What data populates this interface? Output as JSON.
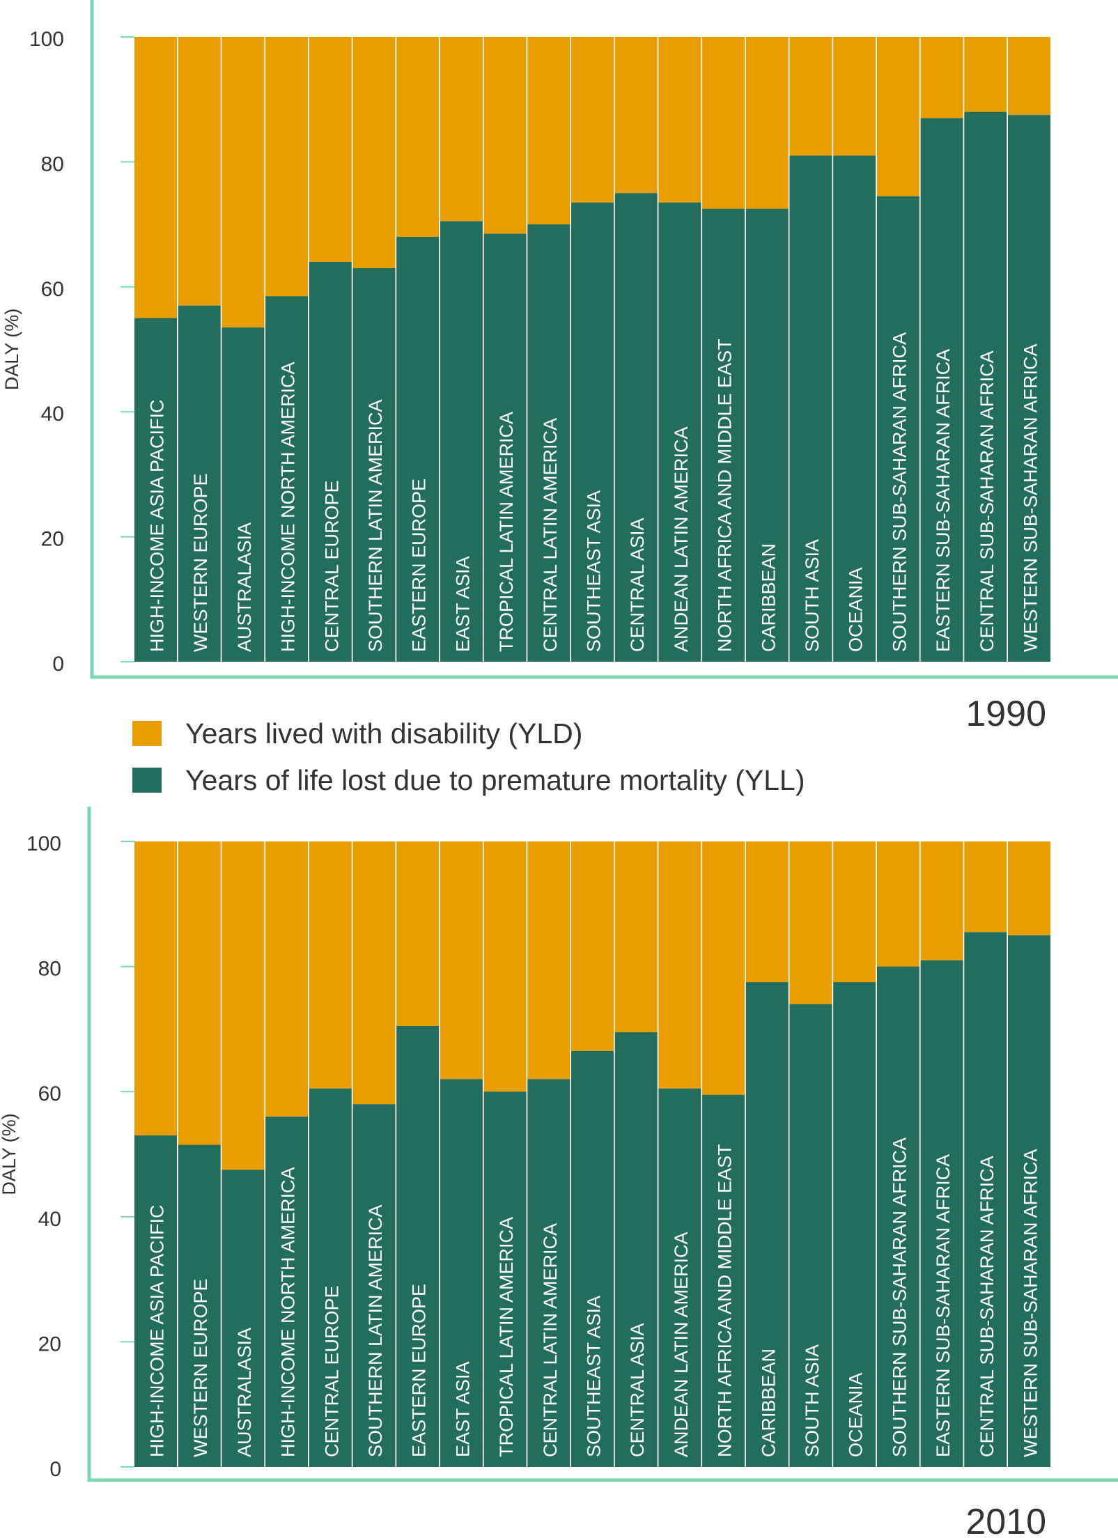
{
  "legend": {
    "yld_label": "Years lived with disability (YLD)",
    "yll_label": "Years of life lost due to premature mortality (YLL)"
  },
  "colors": {
    "yld": "#E99D00",
    "yll": "#226D5C",
    "axis": "#7ED8B2",
    "tick_text": "#333333",
    "bar_label": "#ffffff"
  },
  "chart_data": [
    {
      "type": "bar",
      "stacked": true,
      "title": "1990",
      "ylabel": "DALY (%)",
      "ylim": [
        0,
        100
      ],
      "yticks": [
        0,
        20,
        40,
        60,
        80,
        100
      ],
      "grid": false,
      "categories": [
        "HIGH-INCOME ASIA PACIFIC",
        "WESTERN EUROPE",
        "AUSTRALASIA",
        "HIGH-INCOME NORTH AMERICA",
        "CENTRAL EUROPE",
        "SOUTHERN LATIN AMERICA",
        "EASTERN EUROPE",
        "EAST ASIA",
        "TROPICAL LATIN AMERICA",
        "CENTRAL LATIN AMERICA",
        "SOUTHEAST ASIA",
        "CENTRAL ASIA",
        "ANDEAN LATIN AMERICA",
        "NORTH AFRICA AND MIDDLE EAST",
        "CARIBBEAN",
        "SOUTH ASIA",
        "OCEANIA",
        "SOUTHERN SUB-SAHARAN AFRICA",
        "EASTERN SUB-SAHARAN AFRICA",
        "CENTRAL SUB-SAHARAN AFRICA",
        "WESTERN SUB-SAHARAN AFRICA"
      ],
      "series": [
        {
          "name": "Years of life lost due to premature mortality (YLL)",
          "values": [
            55,
            57,
            53.5,
            58.5,
            64,
            63,
            68,
            70.5,
            68.5,
            70,
            73.5,
            75,
            73.5,
            72.5,
            72.5,
            81,
            81,
            74.5,
            87,
            88,
            87.5
          ]
        },
        {
          "name": "Years lived with disability (YLD)",
          "values": [
            45,
            43,
            46.5,
            41.5,
            36,
            37,
            32,
            29.5,
            31.5,
            30,
            26.5,
            25,
            26.5,
            27.5,
            27.5,
            19,
            19,
            25.5,
            13,
            12,
            12.5
          ]
        }
      ]
    },
    {
      "type": "bar",
      "stacked": true,
      "title": "2010",
      "ylabel": "DALY (%)",
      "ylim": [
        0,
        100
      ],
      "yticks": [
        0,
        20,
        40,
        60,
        80,
        100
      ],
      "grid": false,
      "categories": [
        "HIGH-INCOME ASIA PACIFIC",
        "WESTERN EUROPE",
        "AUSTRALASIA",
        "HIGH-INCOME NORTH AMERICA",
        "CENTRAL EUROPE",
        "SOUTHERN LATIN AMERICA",
        "EASTERN EUROPE",
        "EAST ASIA",
        "TROPICAL LATIN AMERICA",
        "CENTRAL LATIN AMERICA",
        "SOUTHEAST ASIA",
        "CENTRAL ASIA",
        "ANDEAN LATIN AMERICA",
        "NORTH AFRICA AND MIDDLE EAST",
        "CARIBBEAN",
        "SOUTH ASIA",
        "OCEANIA",
        "SOUTHERN SUB-SAHARAN AFRICA",
        "EASTERN SUB-SAHARAN AFRICA",
        "CENTRAL SUB-SAHARAN AFRICA",
        "WESTERN SUB-SAHARAN AFRICA"
      ],
      "series": [
        {
          "name": "Years of life lost due to premature mortality (YLL)",
          "values": [
            53,
            51.5,
            47.5,
            56,
            60.5,
            58,
            70.5,
            62,
            60,
            62,
            66.5,
            69.5,
            60.5,
            59.5,
            77.5,
            74,
            77.5,
            80,
            81,
            85.5,
            85
          ]
        },
        {
          "name": "Years lived with disability (YLD)",
          "values": [
            47,
            48.5,
            52.5,
            44,
            39.5,
            42,
            29.5,
            38,
            40,
            38,
            33.5,
            30.5,
            39.5,
            40.5,
            22.5,
            26,
            22.5,
            20,
            19,
            14.5,
            15
          ]
        }
      ]
    }
  ]
}
